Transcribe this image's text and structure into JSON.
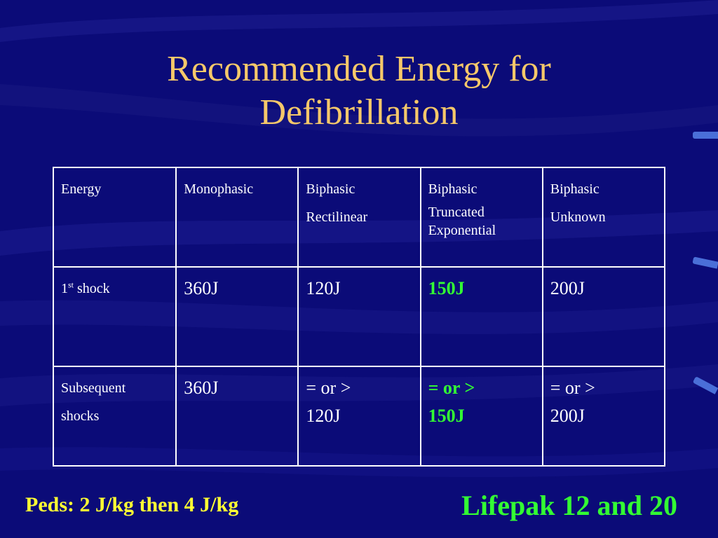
{
  "slide": {
    "title_line1": "Recommended Energy for",
    "title_line2": "Defibrillation",
    "colors": {
      "background": "#0b0b78",
      "title": "#f5c86a",
      "header_text": "#ff2a2a",
      "highlight": "#33ff33",
      "peds_text": "#ffff33"
    }
  },
  "table": {
    "headers": {
      "energy": "Energy",
      "monophasic": "Monophasic",
      "biphasic_rectilinear_1": "Biphasic",
      "biphasic_rectilinear_2": "Rectilinear",
      "biphasic_truncated_1": "Biphasic",
      "biphasic_truncated_2": "Truncated",
      "biphasic_truncated_3": "Exponential",
      "biphasic_unknown_1": "Biphasic",
      "biphasic_unknown_2": "Unknown"
    },
    "first_shock": {
      "label_num": "1",
      "label_sup": "st",
      "label_rest": " shock",
      "monophasic": "360J",
      "rectilinear": "120J",
      "truncated": "150J",
      "unknown": "200J"
    },
    "subsequent": {
      "label_1": "Subsequent",
      "label_2": "shocks",
      "monophasic": "360J",
      "rectilinear_1": "= or >",
      "rectilinear_2": "120J",
      "truncated_1": "= or >",
      "truncated_2": "150J",
      "unknown_1": "= or >",
      "unknown_2": "200J"
    }
  },
  "footer": {
    "peds": "Peds: 2 J/kg then 4 J/kg",
    "device": "Lifepak 12 and 20"
  }
}
